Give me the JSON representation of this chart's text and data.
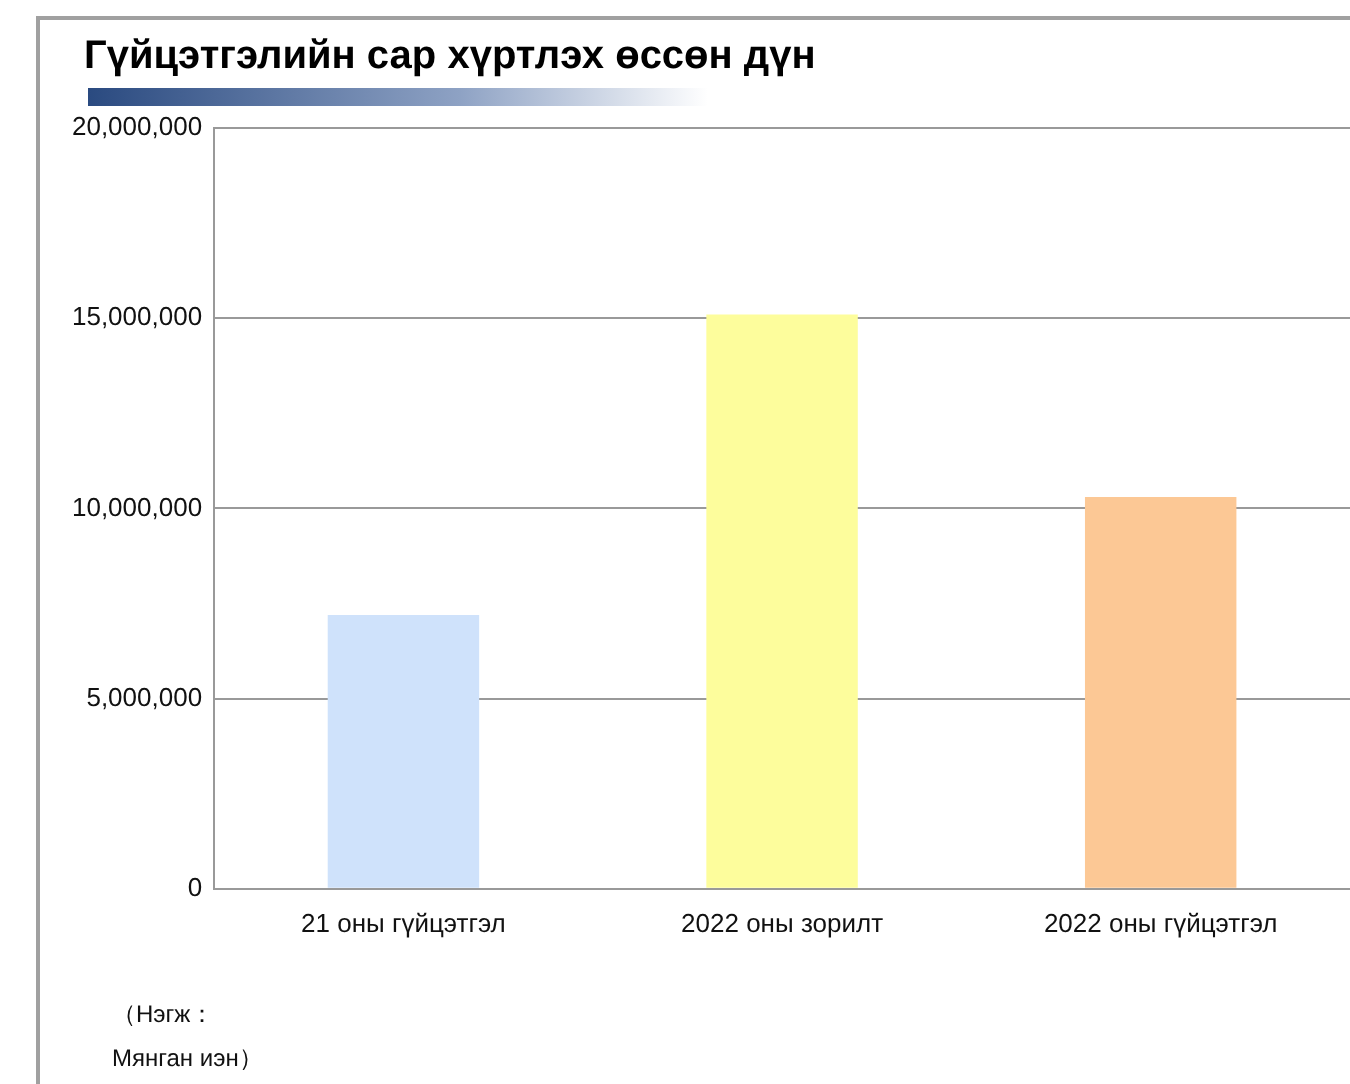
{
  "chart_data": {
    "type": "bar",
    "title": "Гүйцэтгэлийн сар хүртлэх өссөн дүн",
    "categories": [
      "21 оны гүйцэтгэл",
      "2022 оны зорилт",
      "2022 оны гүйцэтгэл"
    ],
    "values": [
      7200000,
      15100000,
      10300000
    ],
    "colors": [
      "#cfe2fb",
      "#fdfd9c",
      "#fcc895"
    ],
    "ylim": [
      0,
      20000000
    ],
    "yticks": [
      0,
      {
        "value": 5000000,
        "label": "5,000,000"
      },
      {
        "value": 10000000,
        "label": "10,000,000"
      },
      {
        "value": 15000000,
        "label": "15,000,000"
      },
      {
        "value": 20000000,
        "label": "20,000,000"
      }
    ],
    "grid": "y",
    "legend": false,
    "annotations": [
      "（Нэгж：Мянган иэн）"
    ]
  }
}
